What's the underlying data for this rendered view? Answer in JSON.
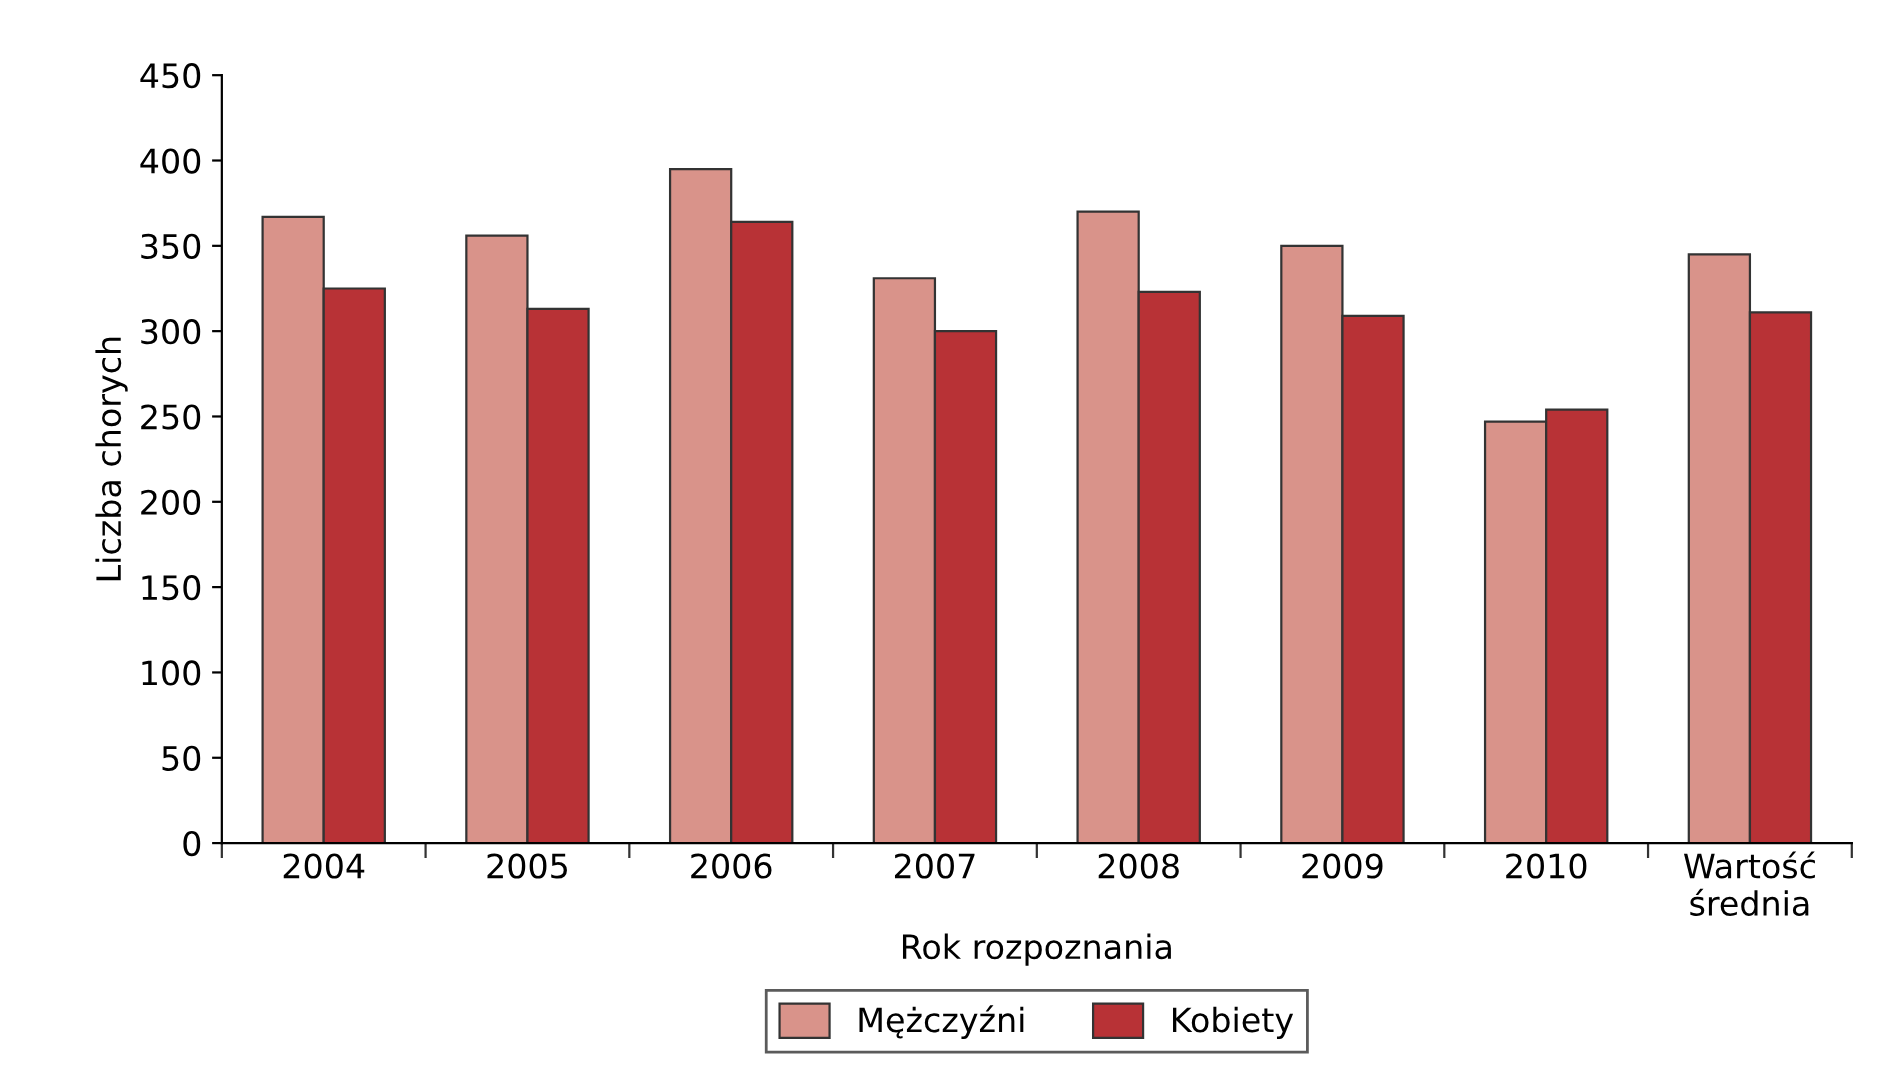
{
  "chart_data": {
    "type": "bar",
    "xlabel": "Rok rozpoznania",
    "ylabel": "Liczba chorych",
    "categories": [
      "2004",
      "2005",
      "2006",
      "2007",
      "2008",
      "2009",
      "2010",
      "Wartość\nśrednia"
    ],
    "series": [
      {
        "name": "Mężczyźni",
        "color": "#d9938a",
        "values": [
          367,
          356,
          395,
          331,
          370,
          350,
          247,
          345
        ]
      },
      {
        "name": "Kobiety",
        "color": "#b83236",
        "values": [
          325,
          313,
          364,
          300,
          323,
          309,
          254,
          311
        ]
      }
    ],
    "ylim": [
      0,
      450
    ],
    "yticks": [
      0,
      50,
      100,
      150,
      200,
      250,
      300,
      350,
      400,
      450
    ],
    "grid": false,
    "legend": "bottom"
  }
}
